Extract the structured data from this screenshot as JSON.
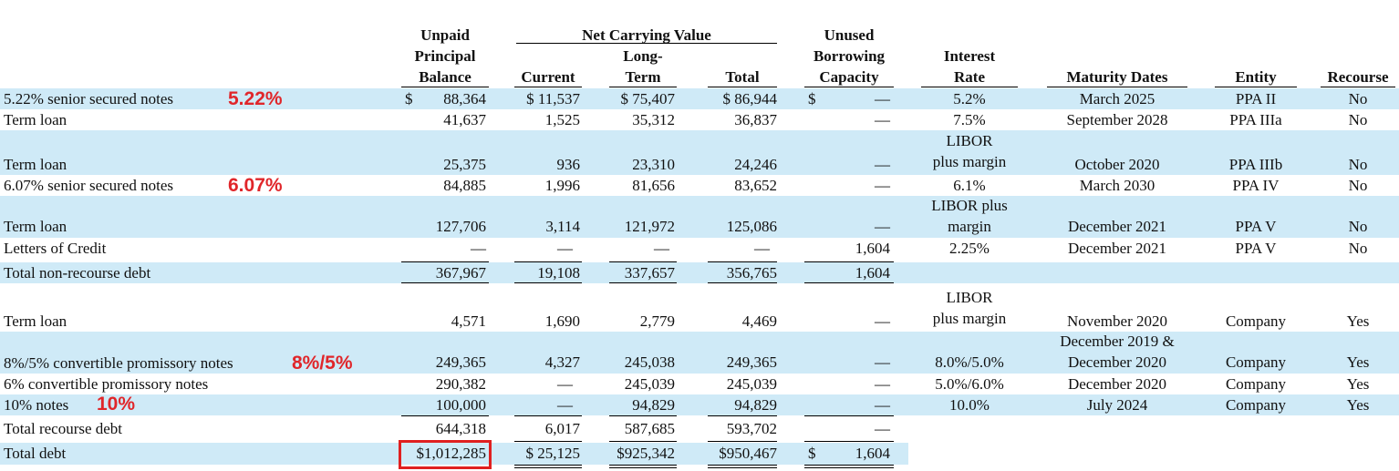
{
  "header": {
    "unpaid": [
      "Unpaid",
      "Principal",
      "Balance"
    ],
    "net_carrying_value": "Net Carrying Value",
    "current": "Current",
    "long_term": [
      "Long-",
      "Term"
    ],
    "total": "Total",
    "unused": [
      "Unused",
      "Borrowing",
      "Capacity"
    ],
    "interest": [
      "Interest",
      "Rate"
    ],
    "maturity": "Maturity Dates",
    "entity": "Entity",
    "recourse": "Recourse"
  },
  "rows": [
    {
      "label": "5.22% senior secured notes",
      "unpaid_sym": "$",
      "unpaid": "88,364",
      "current": "$ 11,537",
      "long_term": "$ 75,407",
      "total": "$ 86,944",
      "unused_sym": "$",
      "unused": "—",
      "rate": [
        "5.2%"
      ],
      "maturity": [
        "March 2025"
      ],
      "entity": "PPA II",
      "recourse": "No",
      "note": "5.22%"
    },
    {
      "label": "Term loan",
      "unpaid": "41,637",
      "current": "1,525",
      "long_term": "35,312",
      "total": "36,837",
      "unused": "—",
      "rate": [
        "7.5%"
      ],
      "maturity": [
        "September 2028"
      ],
      "entity": "PPA IIIa",
      "recourse": "No"
    },
    {
      "label": "Term loan",
      "unpaid": "25,375",
      "current": "936",
      "long_term": "23,310",
      "total": "24,246",
      "unused": "—",
      "rate": [
        "LIBOR",
        "plus margin"
      ],
      "maturity": [
        "October 2020"
      ],
      "entity": "PPA IIIb",
      "recourse": "No"
    },
    {
      "label": "6.07% senior secured notes",
      "unpaid": "84,885",
      "current": "1,996",
      "long_term": "81,656",
      "total": "83,652",
      "unused": "—",
      "rate": [
        "6.1%"
      ],
      "maturity": [
        "March 2030"
      ],
      "entity": "PPA IV",
      "recourse": "No",
      "note": "6.07%"
    },
    {
      "label": "Term loan",
      "unpaid": "127,706",
      "current": "3,114",
      "long_term": "121,972",
      "total": "125,086",
      "unused": "—",
      "rate": [
        "LIBOR plus",
        "margin"
      ],
      "maturity": [
        "December 2021"
      ],
      "entity": "PPA V",
      "recourse": "No"
    },
    {
      "label": "Letters of Credit",
      "unpaid": "—",
      "current": "—",
      "long_term": "—",
      "total": "—",
      "unused": "1,604",
      "rate": [
        "2.25%"
      ],
      "maturity": [
        "December 2021"
      ],
      "entity": "PPA V",
      "recourse": "No"
    },
    {
      "label": "Total non-recourse debt",
      "unpaid": "367,967",
      "current": "19,108",
      "long_term": "337,657",
      "total": "356,765",
      "unused": "1,604",
      "rate": [],
      "maturity": [],
      "entity": "",
      "recourse": ""
    },
    {
      "label": "Term loan",
      "unpaid": "4,571",
      "current": "1,690",
      "long_term": "2,779",
      "total": "4,469",
      "unused": "—",
      "rate": [
        "LIBOR",
        "plus margin"
      ],
      "maturity": [
        "November 2020"
      ],
      "entity": "Company",
      "recourse": "Yes"
    },
    {
      "label": "8%/5% convertible promissory notes",
      "unpaid": "249,365",
      "current": "4,327",
      "long_term": "245,038",
      "total": "249,365",
      "unused": "—",
      "rate": [
        "8.0%/5.0%"
      ],
      "maturity": [
        "December 2019 &",
        "December 2020"
      ],
      "entity": "Company",
      "recourse": "Yes",
      "note": "8%/5%"
    },
    {
      "label": "6% convertible promissory notes",
      "unpaid": "290,382",
      "current": "—",
      "long_term": "245,039",
      "total": "245,039",
      "unused": "—",
      "rate": [
        "5.0%/6.0%"
      ],
      "maturity": [
        "December 2020"
      ],
      "entity": "Company",
      "recourse": "Yes"
    },
    {
      "label": "10% notes",
      "unpaid": "100,000",
      "current": "—",
      "long_term": "94,829",
      "total": "94,829",
      "unused": "—",
      "rate": [
        "10.0%"
      ],
      "maturity": [
        "July 2024"
      ],
      "entity": "Company",
      "recourse": "Yes",
      "note": "10%"
    },
    {
      "label": "Total recourse debt",
      "unpaid": "644,318",
      "current": "6,017",
      "long_term": "587,685",
      "total": "593,702",
      "unused": "—",
      "rate": [],
      "maturity": [],
      "entity": "",
      "recourse": ""
    },
    {
      "label": "Total debt",
      "unpaid": "$1,012,285",
      "current": "$ 25,125",
      "long_term": "$925,342",
      "total": "$950,467",
      "unused_sym": "$",
      "unused": "1,604",
      "rate": [],
      "maturity": [],
      "entity": "",
      "recourse": ""
    }
  ]
}
